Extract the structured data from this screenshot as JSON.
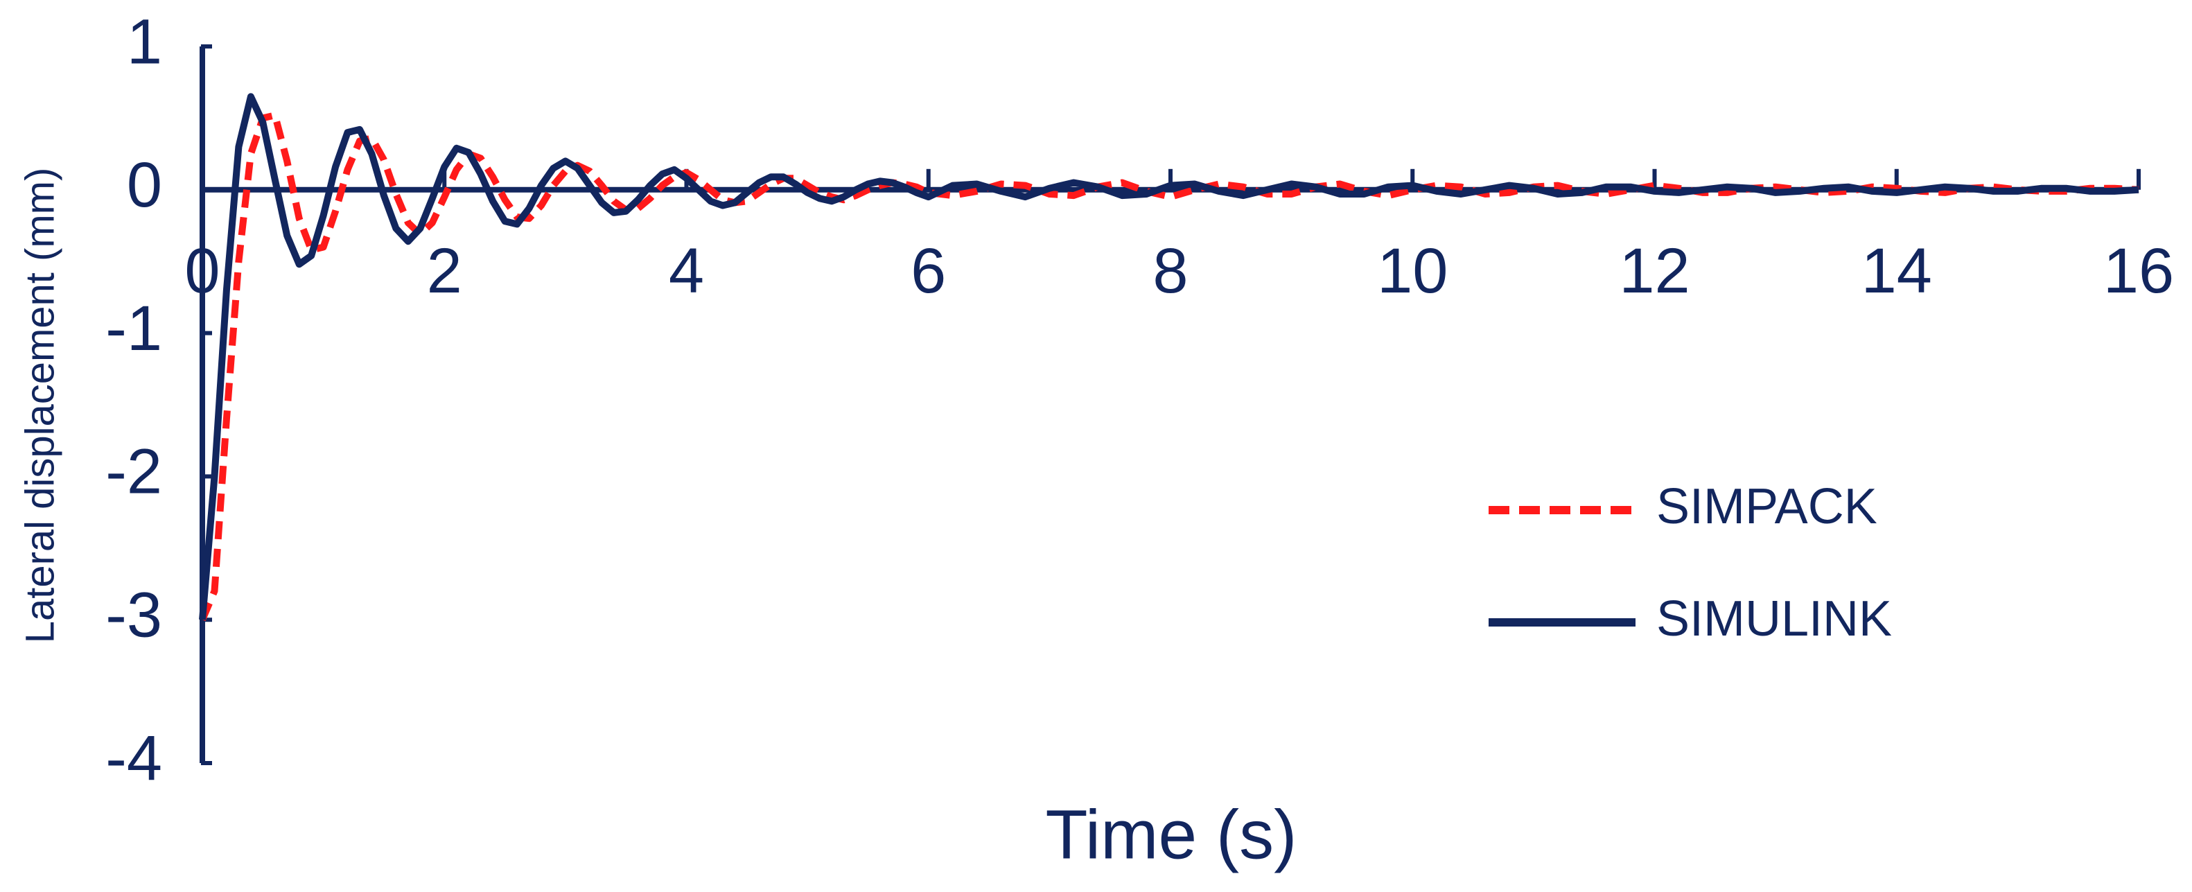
{
  "chart_data": {
    "type": "line",
    "xlabel": "Time (s)",
    "ylabel": "Lateral displacement (mm)",
    "x": [
      0,
      0.1,
      0.2,
      0.3,
      0.4,
      0.5,
      0.6,
      0.7,
      0.8,
      0.9,
      1.0,
      1.1,
      1.2,
      1.3,
      1.4,
      1.5,
      1.6,
      1.7,
      1.8,
      1.9,
      2.0,
      2.1,
      2.2,
      2.3,
      2.4,
      2.5,
      2.6,
      2.7,
      2.8,
      2.9,
      3.0,
      3.1,
      3.2,
      3.3,
      3.4,
      3.5,
      3.6,
      3.7,
      3.8,
      3.9,
      4.0,
      4.1,
      4.2,
      4.3,
      4.4,
      4.5,
      4.6,
      4.7,
      4.8,
      4.9,
      5.0,
      5.1,
      5.2,
      5.3,
      5.4,
      5.5,
      5.6,
      5.7,
      5.8,
      5.9,
      6.0,
      6.2,
      6.4,
      6.6,
      6.8,
      7.0,
      7.2,
      7.4,
      7.6,
      7.8,
      8.0,
      8.2,
      8.4,
      8.6,
      8.8,
      9.0,
      9.2,
      9.4,
      9.6,
      9.8,
      10.0,
      10.2,
      10.4,
      10.6,
      10.8,
      11.0,
      11.2,
      11.4,
      11.6,
      11.8,
      12.0,
      12.2,
      12.4,
      12.6,
      12.8,
      13.0,
      13.2,
      13.4,
      13.6,
      13.8,
      14.0,
      14.2,
      14.4,
      14.6,
      14.8,
      15.0,
      15.2,
      15.4,
      15.6,
      15.8,
      16.0
    ],
    "series": [
      {
        "name": "SIMPACK",
        "color": "#ff1a1a",
        "style": "dashed",
        "values": [
          -3.0,
          -2.8,
          -1.6,
          -0.5,
          0.25,
          0.5,
          0.52,
          0.2,
          -0.2,
          -0.42,
          -0.4,
          -0.15,
          0.14,
          0.34,
          0.36,
          0.21,
          -0.03,
          -0.23,
          -0.31,
          -0.23,
          -0.05,
          0.14,
          0.25,
          0.22,
          0.09,
          -0.07,
          -0.19,
          -0.2,
          -0.11,
          0.03,
          0.13,
          0.17,
          0.13,
          0.03,
          -0.08,
          -0.14,
          -0.13,
          -0.06,
          0.03,
          0.09,
          0.12,
          0.07,
          0,
          -0.07,
          -0.09,
          -0.08,
          -0.02,
          0.04,
          0.08,
          0.08,
          0.03,
          -0.02,
          -0.05,
          -0.07,
          -0.04,
          0,
          0.03,
          0.05,
          0.04,
          0.02,
          -0.02,
          -0.04,
          -0.01,
          0.04,
          0.03,
          -0.03,
          -0.04,
          0.02,
          0.05,
          -0.01,
          -0.05,
          0,
          0.04,
          0.02,
          -0.03,
          -0.03,
          0.02,
          0.04,
          -0.01,
          -0.04,
          0,
          0.03,
          0.02,
          -0.03,
          -0.02,
          0.02,
          0.03,
          -0.01,
          -0.03,
          0,
          0.03,
          0.01,
          -0.02,
          -0.02,
          0.01,
          0.02,
          0,
          -0.02,
          -0.01,
          0.02,
          0.01,
          -0.01,
          -0.02,
          0.01,
          0.02,
          0,
          -0.01,
          -0.01,
          0.01,
          0.01,
          0
        ]
      },
      {
        "name": "SIMULINK",
        "color": "#12265e",
        "style": "solid",
        "values": [
          -3.0,
          -2.0,
          -0.7,
          0.3,
          0.65,
          0.47,
          0.07,
          -0.32,
          -0.52,
          -0.46,
          -0.18,
          0.16,
          0.4,
          0.42,
          0.25,
          -0.04,
          -0.27,
          -0.36,
          -0.27,
          -0.06,
          0.16,
          0.29,
          0.26,
          0.11,
          -0.08,
          -0.22,
          -0.24,
          -0.13,
          0.03,
          0.15,
          0.2,
          0.15,
          0.03,
          -0.09,
          -0.16,
          -0.15,
          -0.07,
          0.03,
          0.11,
          0.14,
          0.08,
          0,
          -0.08,
          -0.11,
          -0.09,
          -0.02,
          0.05,
          0.09,
          0.09,
          0.04,
          -0.02,
          -0.06,
          -0.08,
          -0.05,
          0,
          0.04,
          0.06,
          0.05,
          0.02,
          -0.02,
          -0.05,
          0.03,
          0.04,
          -0.01,
          -0.05,
          0.01,
          0.05,
          0.02,
          -0.04,
          -0.03,
          0.03,
          0.04,
          -0.01,
          -0.04,
          0,
          0.04,
          0.02,
          -0.03,
          -0.03,
          0.02,
          0.03,
          -0.01,
          -0.03,
          0,
          0.03,
          0.01,
          -0.03,
          -0.02,
          0.02,
          0.02,
          -0.01,
          -0.02,
          0,
          0.02,
          0.01,
          -0.02,
          -0.01,
          0.01,
          0.02,
          -0.01,
          -0.02,
          0,
          0.02,
          0.01,
          -0.01,
          -0.01,
          0.01,
          0.01,
          -0.01,
          -0.01,
          0
        ]
      }
    ],
    "xlim": [
      0,
      16
    ],
    "xticks": [
      0,
      2,
      4,
      6,
      8,
      10,
      12,
      14,
      16
    ],
    "ylim": [
      -4,
      1
    ],
    "yticks": [
      -4,
      -3,
      -2,
      -1,
      0,
      1
    ],
    "grid": false,
    "legend": "right"
  }
}
